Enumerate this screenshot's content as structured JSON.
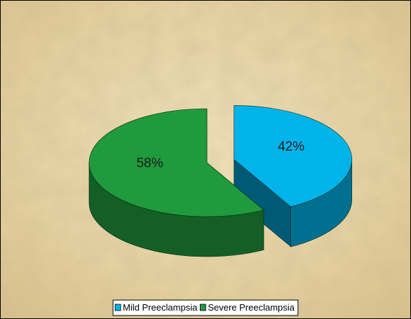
{
  "chart_data": {
    "type": "pie",
    "categories": [
      "Mild Preeclampsia",
      "Severe Preeclampsia"
    ],
    "values": [
      42,
      58
    ],
    "value_labels": [
      "42%",
      "58%"
    ],
    "colors": [
      "#00b4ea",
      "#1f9a3c"
    ],
    "legend": "bottom"
  }
}
